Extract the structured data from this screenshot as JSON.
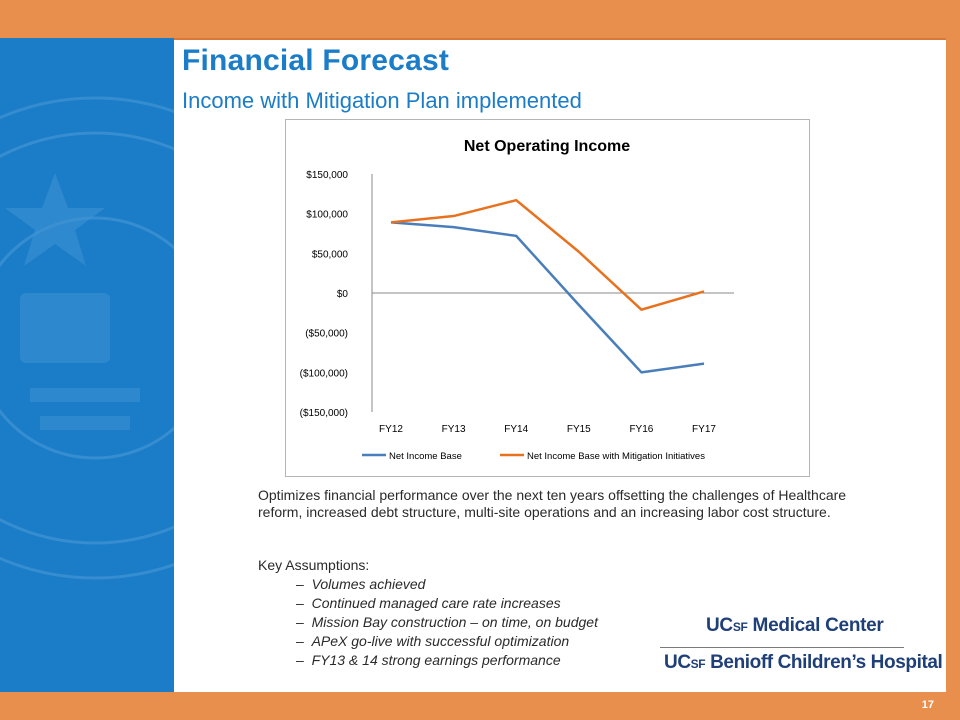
{
  "slide": {
    "title": "Financial Forecast",
    "subtitle": "Income with Mitigation Plan implemented",
    "page_number": "17",
    "accent_color": "#1b7cc8",
    "bar_color": "#e88f4d"
  },
  "description": "Optimizes financial performance over the next ten years offsetting the challenges of Healthcare reform, increased debt structure, multi-site operations and an increasing labor cost structure.",
  "assumptions": {
    "title": "Key Assumptions:",
    "items": [
      "Volumes achieved",
      "Continued managed care rate increases",
      "Mission Bay construction – on time, on budget",
      "APeX go-live with successful optimization",
      "FY13 & 14 strong earnings performance"
    ]
  },
  "logos": {
    "medical_center": {
      "uc": "UC",
      "sf": "SF",
      "rest": " Medical Center"
    },
    "childrens": {
      "uc": "UC",
      "sf": "SF",
      "rest": " Benioff Children’s Hospital"
    }
  },
  "chart_data": {
    "type": "line",
    "title": "Net Operating Income",
    "categories": [
      "FY12",
      "FY13",
      "FY14",
      "FY15",
      "FY16",
      "FY17"
    ],
    "series": [
      {
        "name": "Net Income Base",
        "color": "#4a7ebb",
        "values": [
          89000,
          83000,
          72000,
          -15000,
          -100000,
          -89000
        ]
      },
      {
        "name": "Net Income Base with Mitigation Initiatives",
        "color": "#e8711e",
        "values": [
          89000,
          97000,
          117000,
          52000,
          -21000,
          2000
        ]
      }
    ],
    "ylim": [
      -150000,
      150000
    ],
    "yticks": [
      150000,
      100000,
      50000,
      0,
      -50000,
      -100000,
      -150000
    ],
    "ytick_labels": [
      "$150,000",
      "$100,000",
      "$50,000",
      "$0",
      "($50,000)",
      "($100,000)",
      "($150,000)"
    ],
    "legend": "bottom",
    "grid": false
  }
}
